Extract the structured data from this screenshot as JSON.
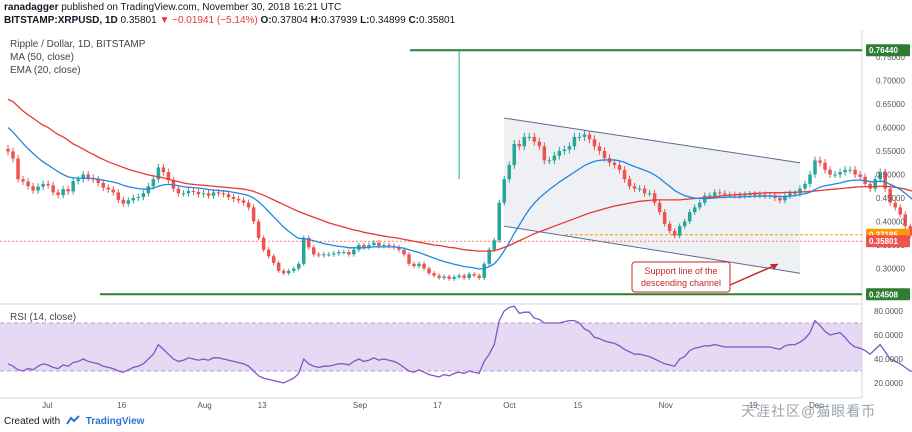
{
  "header": {
    "author": "ranadagger",
    "published_text": "published on TradingView.com, November 30, 2018 16:21 UTC"
  },
  "symbol_bar": {
    "symbol": "BITSTAMP:XRPUSD, 1D",
    "last": "0.35801",
    "change": "▼ −0.01941 (−5.14%)",
    "o_label": "O:",
    "o": "0.37804",
    "h_label": "H:",
    "h": "0.37939",
    "l_label": "L:",
    "l": "0.34899",
    "c_label": "C:",
    "c": "0.35801"
  },
  "legend": {
    "title": "Ripple / Dollar, 1D, BITSTAMP",
    "ma": "MA (50, close)",
    "ema": "EMA (20, close)",
    "rsi": "RSI (14, close)"
  },
  "annotation": {
    "line1": "Support line of the",
    "line2": "descending channel"
  },
  "footer": {
    "created_with": "Created with",
    "brand": "TradingView"
  },
  "watermark": "天涯社区@猫眼看币",
  "colors": {
    "up": "#26a69a",
    "down": "#ef5350",
    "ma": "#e53935",
    "ema": "#1e88e5",
    "level": "#2e7d32",
    "rsi": "#7e57c2",
    "rsi_band": "#e6d9f4",
    "channel": "#eef0f3",
    "orange": "#ff9800"
  },
  "chart_data": {
    "type": "candlestick",
    "price_axis_ticks": [
      "0.75000",
      "0.70000",
      "0.65000",
      "0.60000",
      "0.55000",
      "0.50000",
      "0.45000",
      "0.40000",
      "0.35000",
      "0.30000"
    ],
    "price_labels": [
      {
        "text": "0.76440",
        "value": 0.7644,
        "color": "#2e7d32"
      },
      {
        "text": "0.37185",
        "value": 0.37185,
        "color": "#ff9800"
      },
      {
        "text": "0.35801",
        "value": 0.35801,
        "color": "#ef5350"
      },
      {
        "text": "0.24508",
        "value": 0.24508,
        "color": "#2e7d32"
      }
    ],
    "horizontal_levels": [
      0.7644,
      0.24508
    ],
    "dashed_levels": [
      0.37185,
      0.35801
    ],
    "rsi_ticks": [
      "80.0000",
      "60.0000",
      "40.0000",
      "20.0000"
    ],
    "rsi_band": [
      30,
      70
    ],
    "time_ticks": [
      "Jul",
      "16",
      "Aug",
      "13",
      "Sep",
      "17",
      "Oct",
      "15",
      "Nov",
      "19",
      "Dec"
    ],
    "first_date": "2018-06-23",
    "last_date": "2018-11-30",
    "closes": [
      0.549,
      0.534,
      0.49,
      0.485,
      0.475,
      0.466,
      0.474,
      0.48,
      0.477,
      0.462,
      0.456,
      0.469,
      0.464,
      0.486,
      0.49,
      0.5,
      0.493,
      0.49,
      0.482,
      0.472,
      0.468,
      0.462,
      0.446,
      0.438,
      0.445,
      0.45,
      0.452,
      0.46,
      0.475,
      0.49,
      0.515,
      0.505,
      0.488,
      0.47,
      0.46,
      0.46,
      0.465,
      0.463,
      0.458,
      0.46,
      0.455,
      0.462,
      0.46,
      0.458,
      0.452,
      0.448,
      0.445,
      0.44,
      0.43,
      0.4,
      0.365,
      0.34,
      0.326,
      0.312,
      0.295,
      0.29,
      0.295,
      0.3,
      0.31,
      0.365,
      0.345,
      0.33,
      0.328,
      0.33,
      0.33,
      0.332,
      0.335,
      0.335,
      0.33,
      0.34,
      0.35,
      0.345,
      0.35,
      0.355,
      0.348,
      0.35,
      0.348,
      0.345,
      0.34,
      0.33,
      0.31,
      0.305,
      0.31,
      0.3,
      0.29,
      0.285,
      0.28,
      0.283,
      0.278,
      0.282,
      0.285,
      0.28,
      0.288,
      0.285,
      0.28,
      0.31,
      0.34,
      0.36,
      0.44,
      0.49,
      0.52,
      0.565,
      0.56,
      0.58,
      0.58,
      0.57,
      0.56,
      0.53,
      0.53,
      0.54,
      0.55,
      0.553,
      0.56,
      0.58,
      0.58,
      0.585,
      0.575,
      0.56,
      0.55,
      0.535,
      0.525,
      0.52,
      0.51,
      0.49,
      0.475,
      0.47,
      0.47,
      0.46,
      0.46,
      0.44,
      0.42,
      0.395,
      0.38,
      0.37,
      0.39,
      0.4,
      0.42,
      0.43,
      0.44,
      0.455,
      0.455,
      0.462,
      0.46,
      0.457,
      0.457,
      0.456,
      0.455,
      0.457,
      0.458,
      0.456,
      0.457,
      0.455,
      0.456,
      0.45,
      0.445,
      0.455,
      0.46,
      0.46,
      0.47,
      0.48,
      0.5,
      0.53,
      0.525,
      0.51,
      0.5,
      0.5,
      0.505,
      0.51,
      0.51,
      0.5,
      0.495,
      0.48,
      0.47,
      0.49,
      0.505,
      0.47,
      0.44,
      0.43,
      0.415,
      0.39,
      0.37,
      0.365,
      0.37,
      0.38,
      0.39,
      0.377,
      0.358
    ],
    "ma50": [
      0.66,
      0.655,
      0.645,
      0.635,
      0.627,
      0.62,
      0.612,
      0.605,
      0.6,
      0.592,
      0.585,
      0.58,
      0.573,
      0.565,
      0.56,
      0.554,
      0.548,
      0.543,
      0.537,
      0.532,
      0.527,
      0.523,
      0.519,
      0.515,
      0.511,
      0.508,
      0.505,
      0.502,
      0.499,
      0.497,
      0.495,
      0.493,
      0.49,
      0.487,
      0.485,
      0.482,
      0.48,
      0.479,
      0.478,
      0.477,
      0.476,
      0.475,
      0.474,
      0.473,
      0.472,
      0.471,
      0.47,
      0.469,
      0.467,
      0.464,
      0.46,
      0.456,
      0.451,
      0.446,
      0.441,
      0.436,
      0.431,
      0.426,
      0.421,
      0.417,
      0.413,
      0.409,
      0.405,
      0.401,
      0.397,
      0.394,
      0.391,
      0.388,
      0.385,
      0.382,
      0.38,
      0.377,
      0.375,
      0.373,
      0.371,
      0.369,
      0.367,
      0.366,
      0.364,
      0.362,
      0.36,
      0.358,
      0.356,
      0.354,
      0.352,
      0.35,
      0.349,
      0.347,
      0.345,
      0.344,
      0.342,
      0.34,
      0.339,
      0.338,
      0.337,
      0.337,
      0.337,
      0.338,
      0.341,
      0.345,
      0.349,
      0.354,
      0.359,
      0.364,
      0.369,
      0.374,
      0.378,
      0.382,
      0.386,
      0.39,
      0.394,
      0.398,
      0.402,
      0.406,
      0.41,
      0.414,
      0.418,
      0.421,
      0.424,
      0.427,
      0.43,
      0.433,
      0.435,
      0.437,
      0.439,
      0.441,
      0.443,
      0.444,
      0.445,
      0.446,
      0.446,
      0.446,
      0.446,
      0.446,
      0.446,
      0.447,
      0.448,
      0.449,
      0.45,
      0.451,
      0.452,
      0.453,
      0.454,
      0.455,
      0.456,
      0.457,
      0.458,
      0.458,
      0.459,
      0.46,
      0.46,
      0.461,
      0.461,
      0.461,
      0.461,
      0.462,
      0.462,
      0.462,
      0.463,
      0.463,
      0.464,
      0.465,
      0.466,
      0.467,
      0.468,
      0.469,
      0.47,
      0.471,
      0.472,
      0.473,
      0.474,
      0.474,
      0.474,
      0.474,
      0.475,
      0.475,
      0.474,
      0.473,
      0.471,
      0.469,
      0.466,
      0.463,
      0.46,
      0.458,
      0.455,
      0.452,
      0.45,
      0.449,
      0.449,
      0.449
    ],
    "ema20": [
      0.6,
      0.59,
      0.578,
      0.566,
      0.555,
      0.545,
      0.535,
      0.527,
      0.52,
      0.513,
      0.506,
      0.5,
      0.495,
      0.493,
      0.492,
      0.492,
      0.492,
      0.491,
      0.49,
      0.488,
      0.486,
      0.484,
      0.481,
      0.477,
      0.474,
      0.472,
      0.47,
      0.469,
      0.469,
      0.471,
      0.475,
      0.478,
      0.479,
      0.478,
      0.476,
      0.474,
      0.473,
      0.472,
      0.471,
      0.47,
      0.468,
      0.467,
      0.466,
      0.465,
      0.464,
      0.462,
      0.46,
      0.458,
      0.455,
      0.45,
      0.442,
      0.432,
      0.421,
      0.41,
      0.399,
      0.388,
      0.379,
      0.371,
      0.364,
      0.364,
      0.362,
      0.359,
      0.356,
      0.353,
      0.351,
      0.349,
      0.347,
      0.346,
      0.344,
      0.344,
      0.344,
      0.344,
      0.345,
      0.346,
      0.346,
      0.346,
      0.346,
      0.346,
      0.345,
      0.343,
      0.34,
      0.337,
      0.334,
      0.33,
      0.326,
      0.322,
      0.318,
      0.315,
      0.312,
      0.309,
      0.307,
      0.304,
      0.303,
      0.301,
      0.299,
      0.3,
      0.304,
      0.31,
      0.322,
      0.338,
      0.355,
      0.375,
      0.392,
      0.41,
      0.426,
      0.439,
      0.45,
      0.459,
      0.468,
      0.476,
      0.484,
      0.491,
      0.498,
      0.505,
      0.512,
      0.519,
      0.524,
      0.528,
      0.53,
      0.531,
      0.531,
      0.531,
      0.529,
      0.526,
      0.521,
      0.517,
      0.513,
      0.509,
      0.505,
      0.499,
      0.492,
      0.483,
      0.475,
      0.466,
      0.46,
      0.455,
      0.452,
      0.45,
      0.449,
      0.449,
      0.449,
      0.45,
      0.451,
      0.451,
      0.452,
      0.452,
      0.452,
      0.453,
      0.453,
      0.454,
      0.454,
      0.454,
      0.454,
      0.454,
      0.453,
      0.453,
      0.454,
      0.455,
      0.457,
      0.459,
      0.462,
      0.468,
      0.473,
      0.476,
      0.478,
      0.48,
      0.482,
      0.485,
      0.487,
      0.488,
      0.488,
      0.487,
      0.485,
      0.484,
      0.486,
      0.484,
      0.479,
      0.474,
      0.468,
      0.46,
      0.451,
      0.442,
      0.435,
      0.43,
      0.425,
      0.42,
      0.414
    ],
    "rsi": [
      36,
      34,
      31,
      30,
      32,
      31,
      34,
      36,
      35,
      33,
      32,
      35,
      34,
      37,
      38,
      40,
      38,
      37,
      36,
      34,
      33,
      32,
      30,
      29,
      31,
      33,
      34,
      36,
      40,
      44,
      52,
      48,
      44,
      40,
      38,
      39,
      41,
      40,
      39,
      40,
      39,
      41,
      41,
      40,
      39,
      38,
      37,
      36,
      34,
      30,
      26,
      24,
      23,
      22,
      21,
      20,
      22,
      24,
      28,
      40,
      36,
      34,
      33,
      34,
      34,
      35,
      36,
      36,
      35,
      38,
      40,
      38,
      39,
      41,
      39,
      40,
      39,
      38,
      36,
      33,
      30,
      29,
      31,
      29,
      27,
      26,
      25,
      27,
      26,
      28,
      29,
      28,
      30,
      29,
      28,
      38,
      44,
      52,
      72,
      80,
      83,
      84,
      78,
      79,
      79,
      74,
      73,
      70,
      70,
      70,
      70,
      71,
      72,
      72,
      70,
      65,
      63,
      58,
      57,
      55,
      54,
      53,
      51,
      48,
      46,
      44,
      44,
      43,
      42,
      40,
      38,
      36,
      35,
      34,
      40,
      42,
      47,
      49,
      50,
      51,
      51,
      52,
      51,
      50,
      50,
      50,
      50,
      50,
      50,
      50,
      50,
      50,
      50,
      49,
      48,
      51,
      52,
      52,
      54,
      57,
      62,
      72,
      68,
      63,
      60,
      61,
      62,
      58,
      53,
      50,
      49,
      47,
      44,
      48,
      52,
      46,
      40,
      38,
      36,
      33,
      30,
      30,
      33,
      36,
      39,
      37,
      34
    ],
    "channel_upper": {
      "x": [
        "2018-09-30",
        "2018-11-28"
      ],
      "y": [
        0.62,
        0.525
      ]
    },
    "channel_lower": {
      "x": [
        "2018-09-30",
        "2018-11-28"
      ],
      "y": [
        0.39,
        0.29
      ]
    }
  }
}
